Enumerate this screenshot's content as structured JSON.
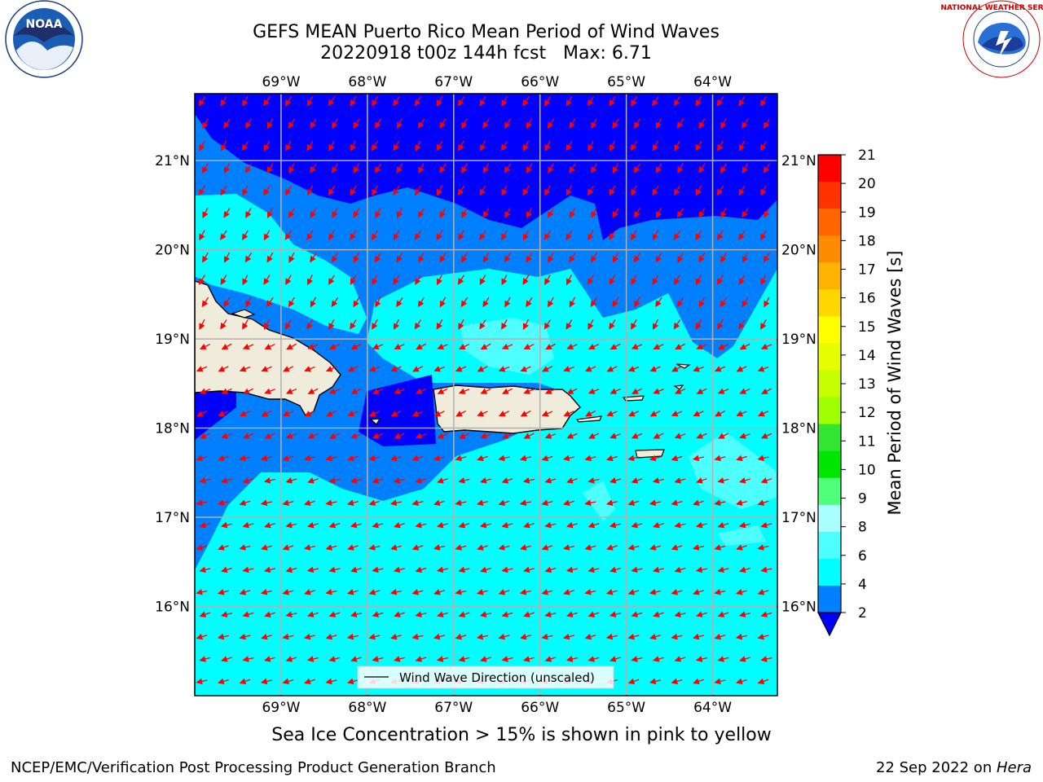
{
  "title": {
    "line1": "GEFS MEAN Puerto Rico Mean Period of Wind Waves",
    "line2": "20220918 t00z 144h fcst   Max: 6.71"
  },
  "map": {
    "lon_labels": [
      "69°W",
      "68°W",
      "67°W",
      "66°W",
      "65°W",
      "64°W"
    ],
    "lat_labels": [
      "21°N",
      "20°N",
      "19°N",
      "18°N",
      "17°N",
      "16°N"
    ],
    "lon_range": [
      -70.0,
      -63.25
    ],
    "lat_range": [
      15.0,
      21.75
    ],
    "legend_label": "Wind Wave Direction (unscaled)",
    "arrow_color": "#ff0000",
    "land_color": "#efecdc"
  },
  "colorbar": {
    "title": "Mean Period of Wind Waves [s]",
    "ticks": [
      "21",
      "20",
      "19",
      "18",
      "17",
      "16",
      "15",
      "14",
      "13",
      "12",
      "11",
      "10",
      "9",
      "8",
      "6",
      "4",
      "2"
    ],
    "colors_top_to_bottom": [
      "#ff0000",
      "#ff3300",
      "#ff6600",
      "#ff8c00",
      "#ffb300",
      "#ffd600",
      "#ffff00",
      "#e6ff00",
      "#c8ff00",
      "#a0ff00",
      "#32e632",
      "#00e600",
      "#50ff7a",
      "#aaffff",
      "#4dffff",
      "#00ffff",
      "#0080ff"
    ],
    "under_color": "#0000ff"
  },
  "note": "Sea Ice Concentration > 15% is shown in pink to yellow",
  "footer": {
    "left": "NCEP/EMC/Verification Post Processing Product Generation Branch",
    "right_date": "22 Sep 2022 on ",
    "right_machine": "Hera"
  },
  "logos": {
    "noaa_text": "NOAA",
    "nws_text": "NATIONAL WEATHER SERVICE"
  }
}
